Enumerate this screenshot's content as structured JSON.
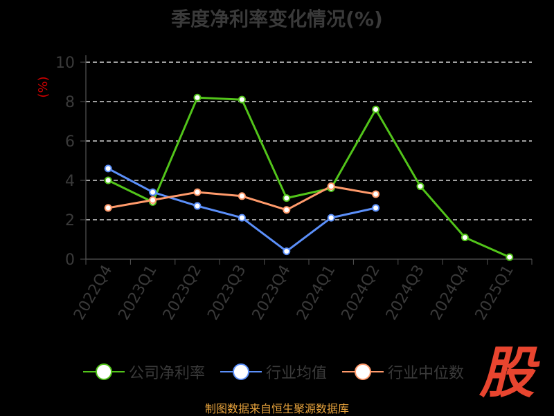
{
  "page": {
    "title": "季度净利率变化情况(%)",
    "source": "制图数据来自恒生聚源数据库",
    "logo": "股"
  },
  "colors": {
    "series": [
      "#52c41a",
      "#5b8ff9",
      "#ff9a6b"
    ],
    "axis": "#555555",
    "grid": "#ffffff",
    "ylabel": "#cc0000",
    "title": "#3a3a3a"
  },
  "chart_data": {
    "type": "line",
    "title": "季度净利率变化情况(%)",
    "xlabel": "",
    "ylabel": "(%)",
    "ylim": [
      0,
      10
    ],
    "yticks": [
      0,
      2,
      4,
      6,
      8,
      10
    ],
    "grid": true,
    "legend_position": "bottom",
    "categories": [
      "2022Q4",
      "2023Q1",
      "2023Q2",
      "2023Q3",
      "2023Q4",
      "2024Q1",
      "2024Q2",
      "2024Q3",
      "2024Q4",
      "2025Q1"
    ],
    "series": [
      {
        "name": "公司净利率",
        "values": [
          4.0,
          2.9,
          8.2,
          8.1,
          3.1,
          3.6,
          7.6,
          3.7,
          1.1,
          0.1
        ]
      },
      {
        "name": "行业均值",
        "values": [
          4.6,
          3.4,
          2.7,
          2.1,
          0.4,
          2.1,
          2.6,
          null,
          null,
          null
        ]
      },
      {
        "name": "行业中位数",
        "values": [
          2.6,
          3.0,
          3.4,
          3.2,
          2.5,
          3.7,
          3.3,
          null,
          null,
          null
        ]
      }
    ]
  }
}
